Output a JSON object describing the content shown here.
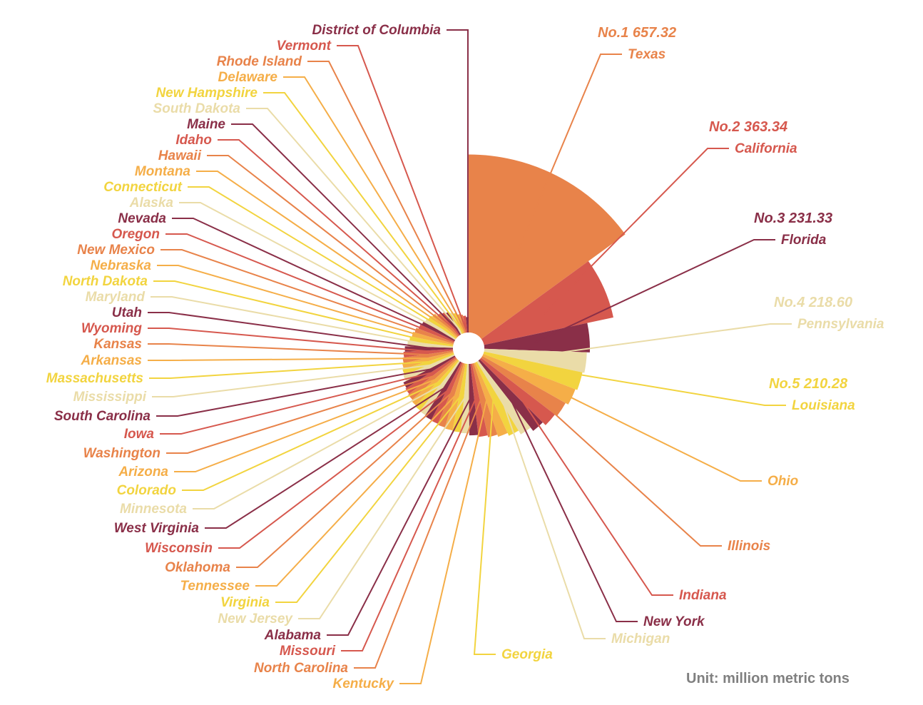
{
  "unit_note": "Unit: million metric tons",
  "chart_data": {
    "type": "nightingale-rose",
    "unit": "million metric tons",
    "rank_prefix": "No.",
    "colors": [
      "#E8834A",
      "#D6584E",
      "#8A2F48",
      "#EADCA8",
      "#F2D43F",
      "#F5AE48"
    ],
    "states": [
      {
        "name": "Texas",
        "value": 657.32,
        "rank": 1
      },
      {
        "name": "California",
        "value": 363.34,
        "rank": 2
      },
      {
        "name": "Florida",
        "value": 231.33,
        "rank": 3
      },
      {
        "name": "Pennsylvania",
        "value": 218.6,
        "rank": 4
      },
      {
        "name": "Louisiana",
        "value": 210.28,
        "rank": 5
      },
      {
        "name": "Ohio",
        "value": 202
      },
      {
        "name": "Illinois",
        "value": 190
      },
      {
        "name": "Indiana",
        "value": 180
      },
      {
        "name": "New York",
        "value": 165
      },
      {
        "name": "Michigan",
        "value": 150
      },
      {
        "name": "Georgia",
        "value": 135
      },
      {
        "name": "Kentucky",
        "value": 125
      },
      {
        "name": "North Carolina",
        "value": 118
      },
      {
        "name": "Missouri",
        "value": 112
      },
      {
        "name": "Alabama",
        "value": 106
      },
      {
        "name": "New Jersey",
        "value": 100
      },
      {
        "name": "Virginia",
        "value": 98
      },
      {
        "name": "Tennessee",
        "value": 96
      },
      {
        "name": "Oklahoma",
        "value": 93
      },
      {
        "name": "Wisconsin",
        "value": 90
      },
      {
        "name": "West Virginia",
        "value": 88
      },
      {
        "name": "Minnesota",
        "value": 85
      },
      {
        "name": "Colorado",
        "value": 83
      },
      {
        "name": "Arizona",
        "value": 80
      },
      {
        "name": "Washington",
        "value": 76
      },
      {
        "name": "Iowa",
        "value": 73
      },
      {
        "name": "South Carolina",
        "value": 70
      },
      {
        "name": "Mississippi",
        "value": 63
      },
      {
        "name": "Massachusetts",
        "value": 60
      },
      {
        "name": "Arkansas",
        "value": 57
      },
      {
        "name": "Kansas",
        "value": 54
      },
      {
        "name": "Wyoming",
        "value": 51
      },
      {
        "name": "Utah",
        "value": 48
      },
      {
        "name": "Maryland",
        "value": 43
      },
      {
        "name": "North Dakota",
        "value": 40
      },
      {
        "name": "Nebraska",
        "value": 37
      },
      {
        "name": "New Mexico",
        "value": 34
      },
      {
        "name": "Oregon",
        "value": 30
      },
      {
        "name": "Nevada",
        "value": 28
      },
      {
        "name": "Alaska",
        "value": 26
      },
      {
        "name": "Connecticut",
        "value": 24
      },
      {
        "name": "Montana",
        "value": 22
      },
      {
        "name": "Hawaii",
        "value": 18
      },
      {
        "name": "Idaho",
        "value": 16
      },
      {
        "name": "Maine",
        "value": 14
      },
      {
        "name": "South Dakota",
        "value": 12
      },
      {
        "name": "New Hampshire",
        "value": 10
      },
      {
        "name": "Delaware",
        "value": 8
      },
      {
        "name": "Rhode Island",
        "value": 7
      },
      {
        "name": "Vermont",
        "value": 6
      },
      {
        "name": "District of Columbia",
        "value": 5
      }
    ]
  }
}
